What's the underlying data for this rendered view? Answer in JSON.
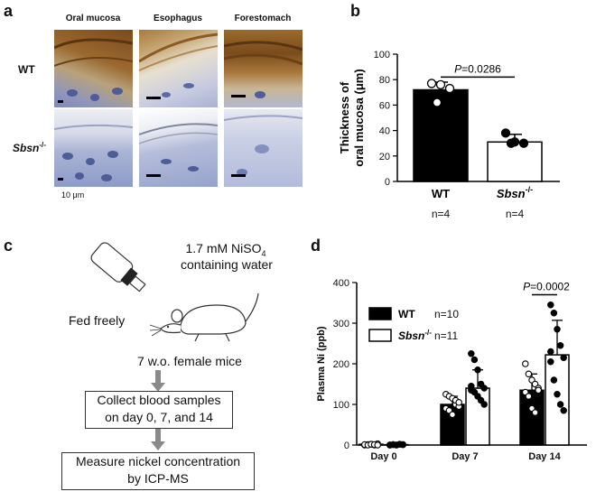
{
  "panels": {
    "a": "a",
    "b": "b",
    "c": "c",
    "d": "d"
  },
  "panel_a": {
    "column_titles": [
      "Oral mucosa",
      "Esophagus",
      "Forestomach"
    ],
    "row_labels": {
      "wt": "WT",
      "sbsn_base": "Sbsn",
      "sbsn_sup": "-/-"
    },
    "scale_label": "10 μm",
    "colors": {
      "keratin_brown": "#8a5a24",
      "tissue_blue": "#8d9bc8",
      "background": "#dfe2ee"
    }
  },
  "panel_c": {
    "solution_line1_base": "1.7 mM NiSO",
    "solution_line1_sub": "4",
    "solution_line2": "containing water",
    "fed_label": "Fed freely",
    "mice_label": "7 w.o. female mice",
    "box1_line1": "Collect blood samples",
    "box1_line2": "on day 0, 7, and 14",
    "box2_line1": "Measure nickel concentration",
    "box2_line2": "by ICP-MS"
  },
  "chart_data": [
    {
      "type": "bar",
      "panel": "b",
      "ylabel_line1": "Thickness of",
      "ylabel_line2": "oral mucosa (μm)",
      "ylim": [
        0,
        100
      ],
      "yticks": [
        0,
        20,
        40,
        60,
        80,
        100
      ],
      "categories": [
        "WT",
        "Sbsn"
      ],
      "category_superscripts": [
        "",
        "-/-"
      ],
      "n_labels": [
        "n=4",
        "n=4"
      ],
      "values": [
        72,
        31
      ],
      "errors": [
        6,
        6
      ],
      "points": [
        [
          77,
          76,
          73,
          62
        ],
        [
          38,
          31,
          30,
          30
        ]
      ],
      "bar_fills": [
        "#000000",
        "#ffffff"
      ],
      "significance": "P=0.0286",
      "significance_p": "P",
      "significance_rest": "=0.0286"
    },
    {
      "type": "bar",
      "panel": "d",
      "ylabel": "Plasma Ni (ppb)",
      "ylim": [
        0,
        400
      ],
      "yticks": [
        0,
        100,
        200,
        300,
        400
      ],
      "categories": [
        "Day 0",
        "Day 7",
        "Day 14"
      ],
      "series": [
        {
          "name": "WT",
          "n_label": "n=10",
          "fill": "#000000",
          "values": [
            2,
            100,
            135
          ],
          "errors": [
            3,
            20,
            40
          ],
          "points": [
            [
              0,
              1,
              2,
              0,
              3,
              1,
              0,
              2,
              1,
              0
            ],
            [
              125,
              120,
              115,
              100,
              95,
              90,
              85,
              75,
              110,
              105
            ],
            [
              200,
              175,
              160,
              150,
              140,
              130,
              120,
              90,
              80,
              135
            ]
          ]
        },
        {
          "name": "Sbsn",
          "name_superscript": "-/-",
          "n_label": "n=11",
          "fill": "#ffffff",
          "values": [
            1,
            140,
            222
          ],
          "errors": [
            2,
            45,
            85
          ],
          "points": [
            [
              0,
              1,
              0,
              2,
              1,
              0,
              1,
              0,
              2,
              1,
              0
            ],
            [
              225,
              210,
              185,
              150,
              140,
              135,
              130,
              120,
              110,
              100,
              145
            ],
            [
              345,
              325,
              285,
              245,
              215,
              205,
              160,
              125,
              100,
              85,
              230
            ]
          ]
        }
      ],
      "significance": "P=0.0002",
      "significance_p": "P",
      "significance_rest": "=0.0002"
    }
  ]
}
